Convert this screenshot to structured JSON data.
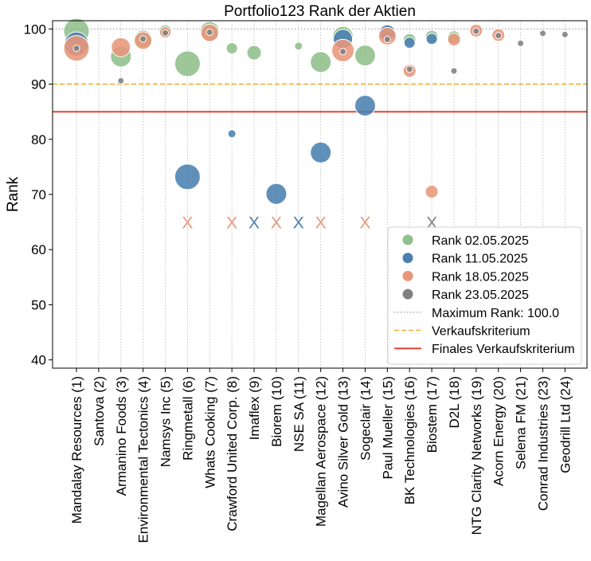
{
  "chart_data": {
    "type": "scatter",
    "title": "Portfolio123 Rank der Aktien",
    "ylabel": "Rank",
    "xlabel": "",
    "ylim": [
      38.5,
      101.5
    ],
    "yticks": [
      40,
      50,
      60,
      70,
      80,
      90,
      100
    ],
    "grid": "x-vertical-dotted",
    "legend_position": "bottom-right",
    "categories": [
      "Mandalay Resources (1)",
      "Santova (2)",
      "Armanino Foods (3)",
      "Environmental Tectonics (4)",
      "Namsys Inc (5)",
      "Ringmetall (6)",
      "Whats Cooking (7)",
      "Crawford United Corp. (8)",
      "Imaflex (9)",
      "Biorem (10)",
      "NSE SA (11)",
      "Magellan Aerospace (12)",
      "Avino Silver Gold (13)",
      "Sogeclair (14)",
      "Paul Mueller (15)",
      "BK Technologies (16)",
      "Biostem (17)",
      "D2L (18)",
      "NTG Clarity Networks (19)",
      "Acorn Energy (20)",
      "Selena FM (21)",
      "Conrad Industries (23)",
      "Geodrill Ltd (24)"
    ],
    "series": [
      {
        "name": "Rank 02.05.2025",
        "color": "#8fbf8a",
        "points": [
          {
            "x": "Mandalay Resources (1)",
            "y": 99.6,
            "size": 16
          },
          {
            "x": "Armanino Foods (3)",
            "y": 95.0,
            "size": 13
          },
          {
            "x": "Environmental Tectonics (4)",
            "y": 98.2,
            "size": 11
          },
          {
            "x": "Namsys Inc (5)",
            "y": 99.6,
            "size": 8
          },
          {
            "x": "Ringmetall (6)",
            "y": 93.7,
            "size": 16
          },
          {
            "x": "Whats Cooking (7)",
            "y": 99.6,
            "size": 12
          },
          {
            "x": "Crawford United Corp. (8)",
            "y": 96.5,
            "size": 7
          },
          {
            "x": "Imaflex (9)",
            "y": 95.7,
            "size": 9
          },
          {
            "x": "NSE SA (11)",
            "y": 96.9,
            "size": 5
          },
          {
            "x": "Magellan Aerospace (12)",
            "y": 94.0,
            "size": 13
          },
          {
            "x": "Avino Silver Gold (13)",
            "y": 98.6,
            "size": 13
          },
          {
            "x": "Sogeclair (14)",
            "y": 95.2,
            "size": 13
          },
          {
            "x": "Paul Mueller (15)",
            "y": 99.3,
            "size": 11
          },
          {
            "x": "BK Technologies (16)",
            "y": 98.0,
            "size": 8
          },
          {
            "x": "Biostem (17)",
            "y": 98.6,
            "size": 8
          },
          {
            "x": "D2L (18)",
            "y": 98.5,
            "size": 8
          }
        ]
      },
      {
        "name": "Rank 11.05.2025",
        "color": "#4a7fb0",
        "points": [
          {
            "x": "Mandalay Resources (1)",
            "y": 97.3,
            "size": 15
          },
          {
            "x": "Ringmetall (6)",
            "y": 73.2,
            "size": 16
          },
          {
            "x": "Crawford United Corp. (8)",
            "y": 81.0,
            "size": 5
          },
          {
            "x": "Imaflex (9)",
            "y": 65.0,
            "marker": "X"
          },
          {
            "x": "Biorem (10)",
            "y": 70.1,
            "size": 13
          },
          {
            "x": "NSE SA (11)",
            "y": 65.0,
            "marker": "X"
          },
          {
            "x": "Magellan Aerospace (12)",
            "y": 77.6,
            "size": 13
          },
          {
            "x": "Avino Silver Gold (13)",
            "y": 98.2,
            "size": 12
          },
          {
            "x": "Sogeclair (14)",
            "y": 86.1,
            "size": 13
          },
          {
            "x": "Paul Mueller (15)",
            "y": 99.3,
            "size": 10
          },
          {
            "x": "BK Technologies (16)",
            "y": 97.5,
            "size": 7
          },
          {
            "x": "Biostem (17)",
            "y": 98.2,
            "size": 7
          }
        ]
      },
      {
        "name": "Rank 18.05.2025",
        "color": "#e8967a",
        "points": [
          {
            "x": "Mandalay Resources (1)",
            "y": 96.5,
            "size": 16
          },
          {
            "x": "Armanino Foods (3)",
            "y": 96.7,
            "size": 12
          },
          {
            "x": "Environmental Tectonics (4)",
            "y": 97.9,
            "size": 11
          },
          {
            "x": "Namsys Inc (5)",
            "y": 99.4,
            "size": 7
          },
          {
            "x": "Ringmetall (6)",
            "y": 65.0,
            "marker": "X"
          },
          {
            "x": "Whats Cooking (7)",
            "y": 99.3,
            "size": 11
          },
          {
            "x": "Crawford United Corp. (8)",
            "y": 65.0,
            "marker": "X"
          },
          {
            "x": "Biorem (10)",
            "y": 65.0,
            "marker": "X"
          },
          {
            "x": "Magellan Aerospace (12)",
            "y": 65.0,
            "marker": "X"
          },
          {
            "x": "Avino Silver Gold (13)",
            "y": 96.1,
            "size": 14
          },
          {
            "x": "Sogeclair (14)",
            "y": 65.0,
            "marker": "X"
          },
          {
            "x": "Paul Mueller (15)",
            "y": 98.7,
            "size": 11
          },
          {
            "x": "BK Technologies (16)",
            "y": 92.4,
            "size": 8
          },
          {
            "x": "Biostem (17)",
            "y": 70.5,
            "size": 8
          },
          {
            "x": "D2L (18)",
            "y": 98.1,
            "size": 8
          },
          {
            "x": "NTG Clarity Networks (19)",
            "y": 99.7,
            "size": 8
          },
          {
            "x": "Acorn Energy (20)",
            "y": 98.9,
            "size": 8
          }
        ]
      },
      {
        "name": "Rank 23.05.2025",
        "color": "#808080",
        "points": [
          {
            "x": "Mandalay Resources (1)",
            "y": 96.5,
            "size": 4
          },
          {
            "x": "Armanino Foods (3)",
            "y": 90.6,
            "size": 4
          },
          {
            "x": "Environmental Tectonics (4)",
            "y": 98.2,
            "size": 4
          },
          {
            "x": "Namsys Inc (5)",
            "y": 99.3,
            "size": 4
          },
          {
            "x": "Whats Cooking (7)",
            "y": 99.4,
            "size": 4
          },
          {
            "x": "Avino Silver Gold (13)",
            "y": 95.9,
            "size": 4
          },
          {
            "x": "Paul Mueller (15)",
            "y": 98.1,
            "size": 4
          },
          {
            "x": "BK Technologies (16)",
            "y": 92.7,
            "size": 4
          },
          {
            "x": "Biostem (17)",
            "y": 65.0,
            "marker": "X"
          },
          {
            "x": "D2L (18)",
            "y": 92.4,
            "size": 4
          },
          {
            "x": "NTG Clarity Networks (19)",
            "y": 99.6,
            "size": 4
          },
          {
            "x": "Acorn Energy (20)",
            "y": 98.8,
            "size": 4
          },
          {
            "x": "Selena FM (21)",
            "y": 97.4,
            "size": 4
          },
          {
            "x": "Conrad Industries (23)",
            "y": 99.2,
            "size": 4
          },
          {
            "x": "Geodrill Ltd (24)",
            "y": 99.0,
            "size": 4
          }
        ]
      }
    ],
    "reference_lines": [
      {
        "name": "Maximum Rank: 100.0",
        "y": 100.0,
        "color": "#b0b0b0",
        "style": "dotted"
      },
      {
        "name": "Verkaufskriterium",
        "y": 90.0,
        "color": "#f0b030",
        "style": "dashed"
      },
      {
        "name": "Finales Verkaufskriterium",
        "y": 85.0,
        "color": "#e84030",
        "style": "solid"
      }
    ]
  }
}
